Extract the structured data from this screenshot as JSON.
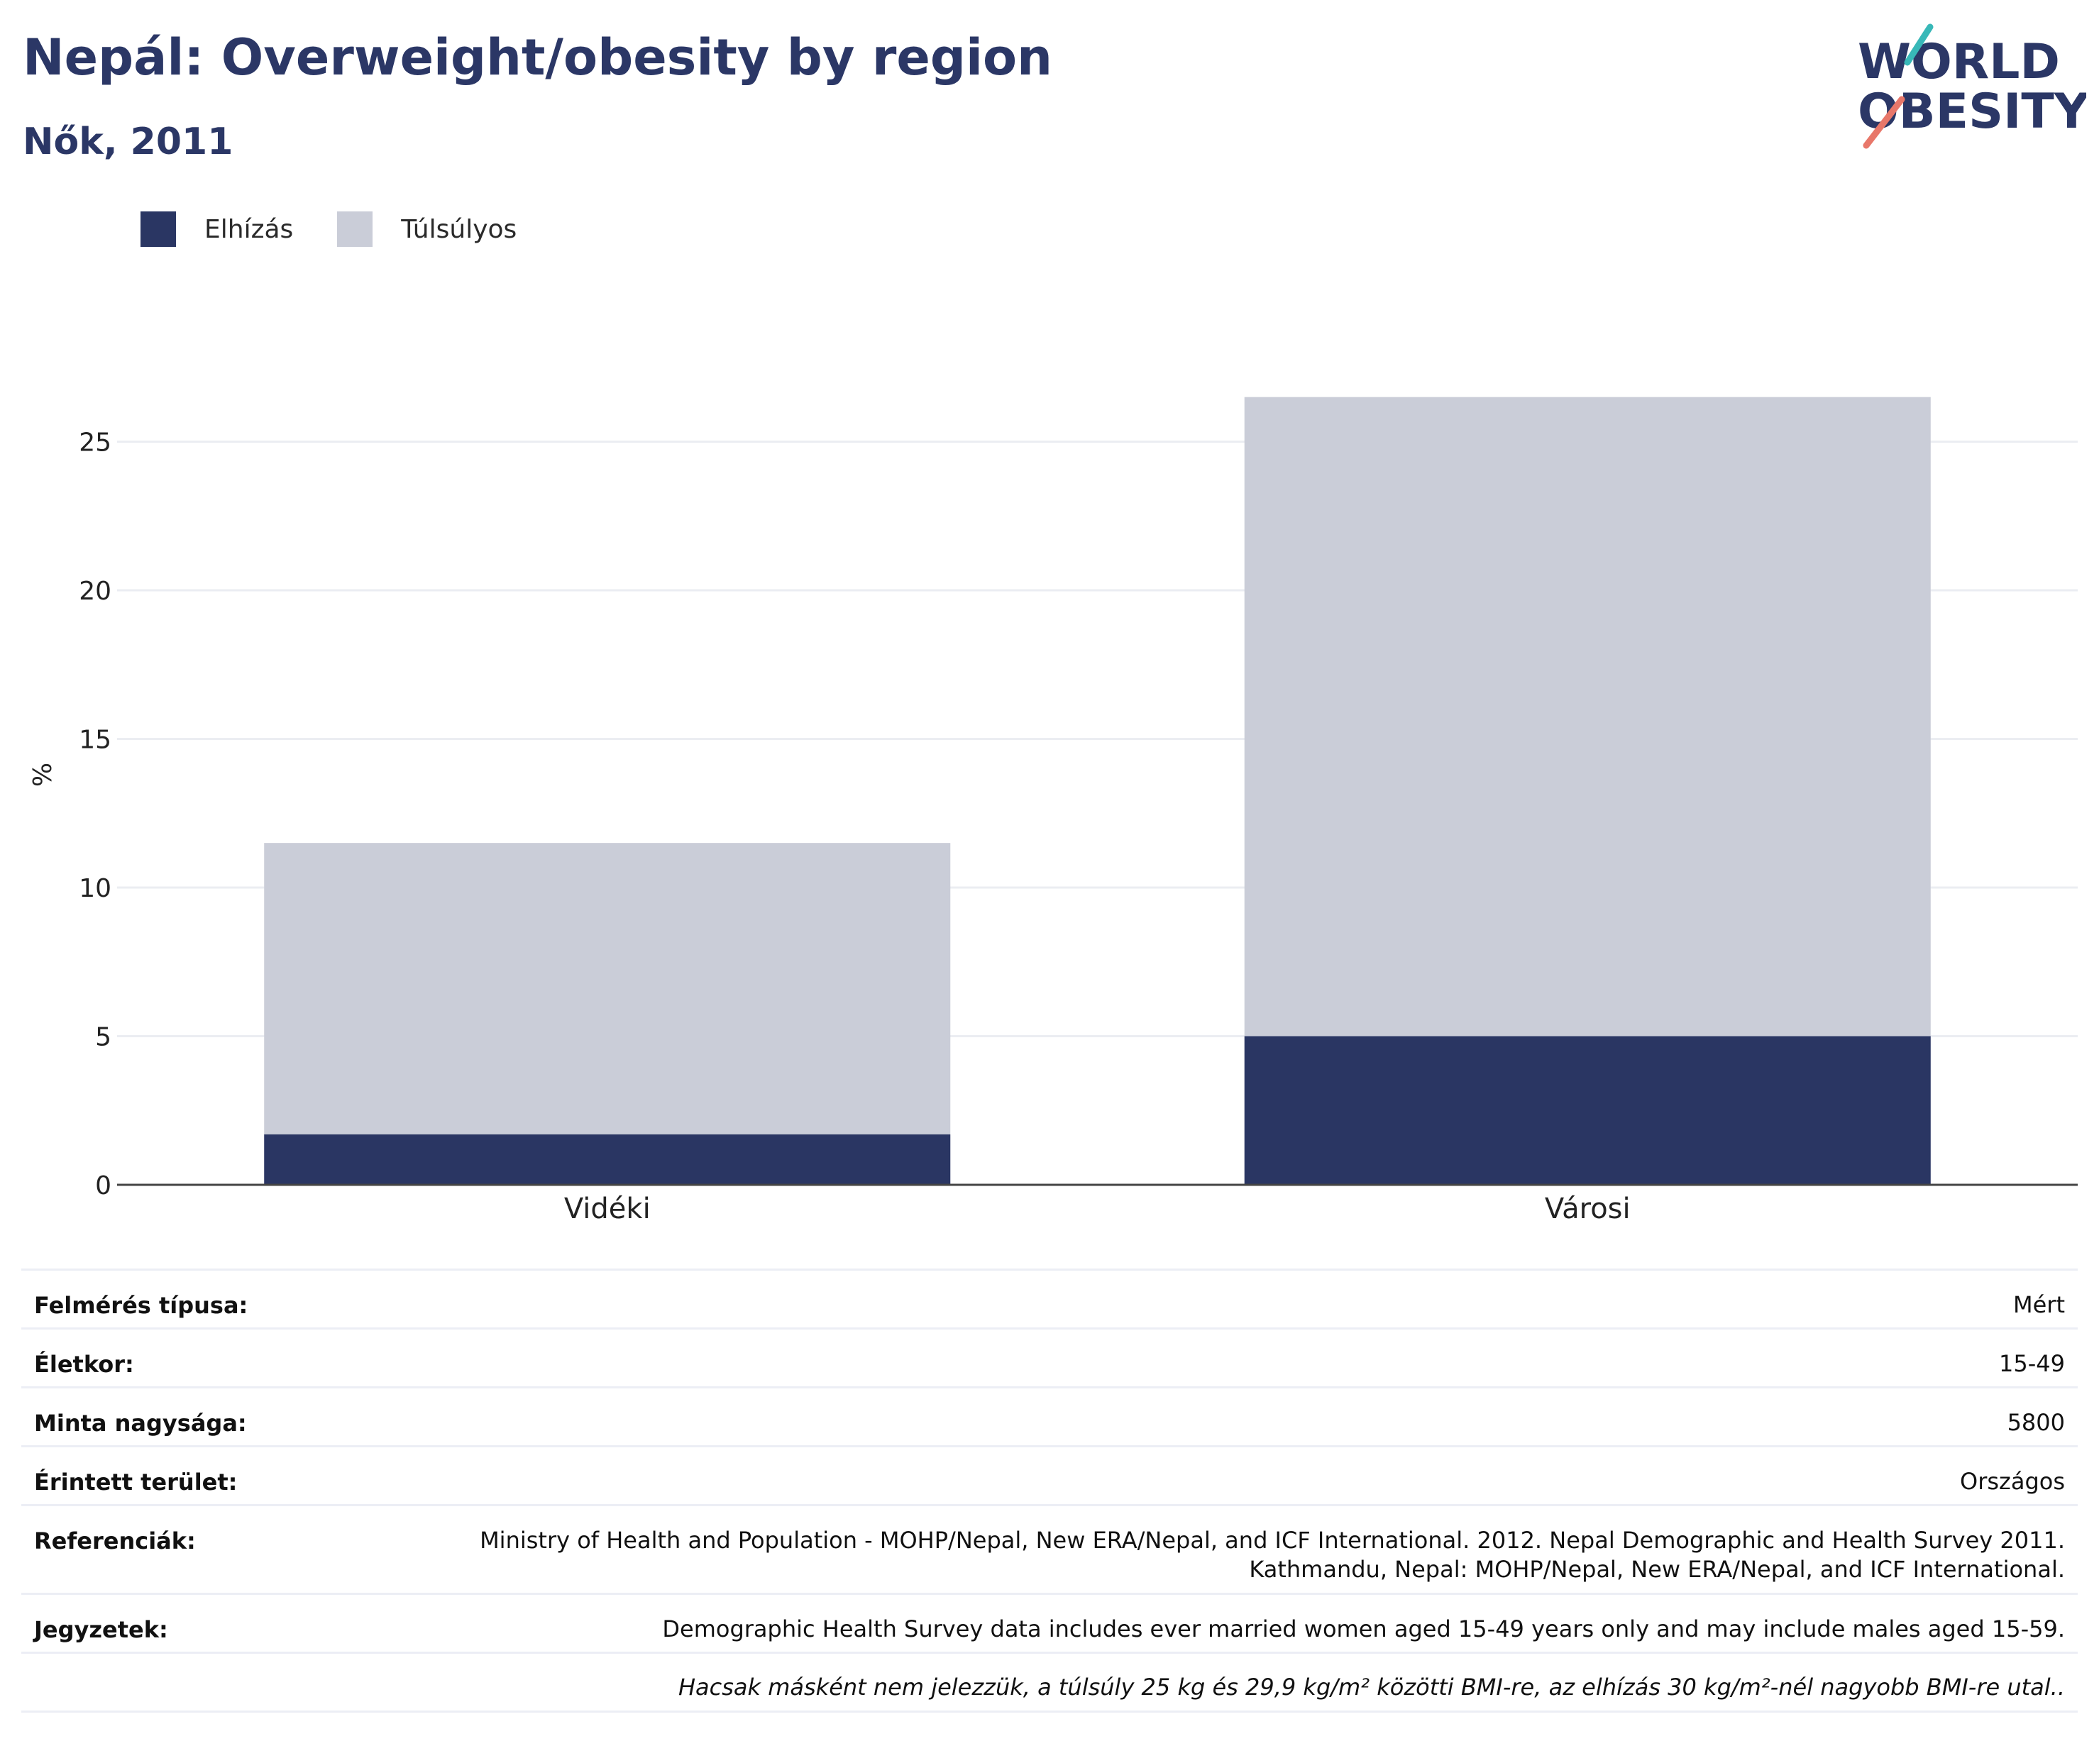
{
  "title": "Nepál: Overweight/obesity by region",
  "subtitle": "Nők, 2011",
  "logo": {
    "line1": "WORLD",
    "line2": "OBESITY"
  },
  "colors": {
    "obesity": "#2a3663",
    "overweight": "#cacdd8",
    "title": "#2b3766"
  },
  "legend": {
    "obesity": "Elhízás",
    "overweight": "Túlsúlyos"
  },
  "chart_data": {
    "type": "bar",
    "stacked": true,
    "categories": [
      "Vidéki",
      "Városi"
    ],
    "series": [
      {
        "name": "Elhízás",
        "values": [
          1.7,
          5.0
        ]
      },
      {
        "name": "Túlsúlyos",
        "values": [
          9.8,
          21.5
        ]
      }
    ],
    "ylabel": "%",
    "ylim": [
      0,
      28
    ],
    "yticks": [
      0,
      5,
      10,
      15,
      20,
      25
    ],
    "grid": true,
    "legend_position": "top-left"
  },
  "info": [
    {
      "key": "Felmérés típusa:",
      "value": "Mért"
    },
    {
      "key": "Életkor:",
      "value": "15-49"
    },
    {
      "key": "Minta nagysága:",
      "value": "5800"
    },
    {
      "key": "Érintett terület:",
      "value": "Országos"
    },
    {
      "key": "Referenciák:",
      "value": "Ministry of Health and Population - MOHP/Nepal, New ERA/Nepal, and ICF International. 2012. Nepal Demographic and Health Survey 2011. Kathmandu, Nepal: MOHP/Nepal, New ERA/Nepal, and ICF International."
    },
    {
      "key": "Jegyzetek:",
      "value": "Demographic Health Survey data includes ever married women aged 15-49 years only and may include males aged 15-59."
    }
  ],
  "footnote": "Hacsak másként nem jelezzük, a túlsúly 25 kg és 29,9 kg/m² közötti BMI-re, az elhízás 30 kg/m²-nél nagyobb BMI-re utal.."
}
